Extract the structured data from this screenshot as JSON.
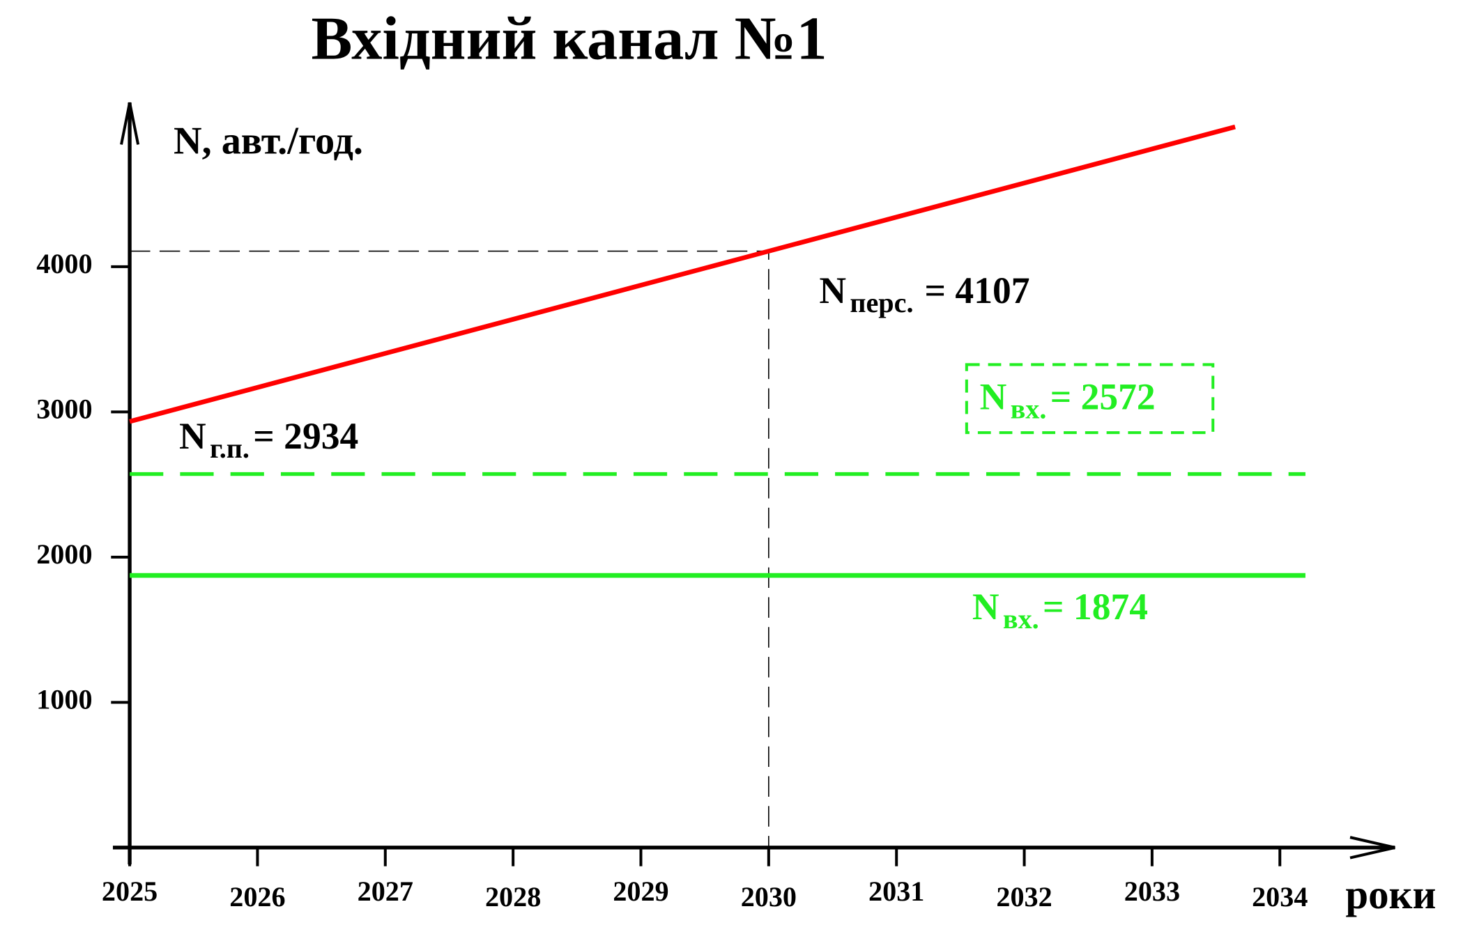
{
  "chart_data": {
    "type": "line",
    "title": "Вхідний канал №1",
    "y_label": "N, авт./год.",
    "x_label": "роки",
    "xlim": [
      2025,
      2034.9
    ],
    "xticks": [
      2025,
      2026,
      2027,
      2028,
      2029,
      2030,
      2031,
      2032,
      2033,
      2034
    ],
    "ylim": [
      0,
      5130
    ],
    "yticks": [
      1000,
      2000,
      3000,
      4000
    ],
    "series": [
      {
        "color": "#ff0000",
        "x": [
          2025,
          2030,
          2033.65
        ],
        "values": [
          2934,
          4107,
          4963
        ],
        "dashed": false
      },
      {
        "color": "#22ee22",
        "x": [
          2025,
          2034.2
        ],
        "values": [
          2572,
          2572
        ],
        "dashed": true
      },
      {
        "color": "#22ee22",
        "x": [
          2025,
          2034.2
        ],
        "values": [
          1874,
          1874
        ],
        "dashed": false
      }
    ],
    "annotations": [
      {
        "main": "N",
        "sub": "перс.",
        "rest": "= 4107"
      },
      {
        "main": "N",
        "sub": "вх.",
        "rest": "= 2572"
      },
      {
        "main": "N",
        "sub": "г.п.",
        "rest": "= 2934"
      },
      {
        "main": "N",
        "sub": "вх.",
        "rest": "= 1874"
      }
    ]
  }
}
